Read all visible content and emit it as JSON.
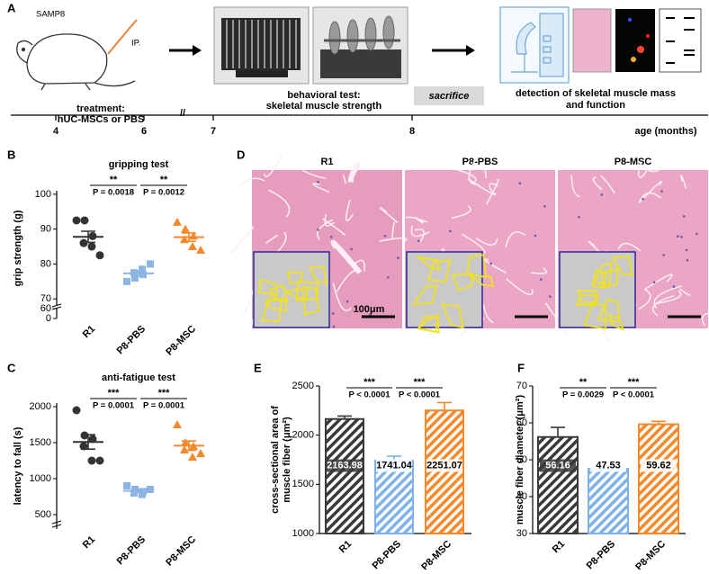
{
  "schematic": {
    "panel": "A",
    "mouse_label": "SAMP8",
    "injection": "IP.",
    "treatment": [
      "treatment:",
      "hUC-MSCs  or PBS"
    ],
    "behavior": [
      "behavioral test:",
      "skeletal muscle strength"
    ],
    "sacrifice": "sacrifice",
    "detection": [
      "detection of skeletal muscle mass",
      "and function"
    ],
    "timeline_ticks": [
      4,
      6,
      7,
      8
    ],
    "timeline_label": "age (months)"
  },
  "histology": {
    "panel": "D",
    "titles": [
      "R1",
      "P8-PBS",
      "P8-MSC"
    ],
    "scale_bar": "100μm"
  },
  "chart_data": [
    {
      "type": "dot",
      "panel": "B",
      "title": "gripping test",
      "ylabel": "grip strength (g)",
      "categories": [
        "R1",
        "P8-PBS",
        "P8-MSC"
      ],
      "groups": [
        {
          "color": "#333333",
          "marker": "circle",
          "values": [
            92.5,
            92.5,
            88,
            86,
            85,
            82.5
          ],
          "mean": 87.8,
          "sem": 1.6
        },
        {
          "color": "#8db4e2",
          "marker": "square",
          "values": [
            75,
            76,
            77,
            77.5,
            78.5,
            80
          ],
          "mean": 77.3,
          "sem": 0.7
        },
        {
          "color": "#f7892b",
          "marker": "triangle",
          "values": [
            92,
            90,
            88,
            87,
            85,
            84
          ],
          "mean": 87.7,
          "sem": 1.2
        }
      ],
      "ylim": [
        68,
        101
      ],
      "yticks": [
        70,
        80,
        90,
        100
      ],
      "ylim_lower": [
        0,
        60
      ],
      "yticks_lower": [
        0,
        60
      ],
      "comparisons": [
        {
          "stars": "**",
          "label": "P = 0.0018"
        },
        {
          "stars": "**",
          "label": "P = 0.0012"
        }
      ]
    },
    {
      "type": "dot",
      "panel": "C",
      "title": "anti-fatigue test",
      "ylabel": "latency to fall (s)",
      "categories": [
        "R1",
        "P8-PBS",
        "P8-MSC"
      ],
      "groups": [
        {
          "color": "#333333",
          "marker": "circle",
          "values": [
            1950,
            1600,
            1550,
            1450,
            1250,
            1250
          ],
          "mean": 1510,
          "sem": 100
        },
        {
          "color": "#8db4e2",
          "marker": "square",
          "values": [
            900,
            850,
            820,
            800,
            780,
            850
          ],
          "mean": 830,
          "sem": 25
        },
        {
          "color": "#f7892b",
          "marker": "triangle",
          "values": [
            1750,
            1500,
            1450,
            1400,
            1300,
            1350
          ],
          "mean": 1458,
          "sem": 65
        }
      ],
      "ylim": [
        300,
        2050
      ],
      "yticks": [
        500,
        1000,
        1500,
        2000
      ],
      "comparisons": [
        {
          "stars": "***",
          "label": "P = 0.0001"
        },
        {
          "stars": "***",
          "label": "P = 0.0001"
        }
      ]
    },
    {
      "type": "bar",
      "panel": "E",
      "ylabel": [
        "cross-sectional area of",
        "muscle fiber (μm²)"
      ],
      "categories": [
        "R1",
        "P8-PBS",
        "P8-MSC"
      ],
      "values": [
        2163.98,
        1741.04,
        2251.07
      ],
      "errors": [
        30,
        45,
        80
      ],
      "colors": [
        "#3a3a3a",
        "#7fb2ea",
        "#f7892b"
      ],
      "ylim": [
        1000,
        2500
      ],
      "yticks": [
        1000,
        1500,
        2000,
        2500
      ],
      "comparisons": [
        {
          "stars": "***",
          "label": "P < 0.0001"
        },
        {
          "stars": "***",
          "label": "P < 0.0001"
        }
      ]
    },
    {
      "type": "bar",
      "panel": "F",
      "ylabel": [
        "muscle fiber diameter (μm²)"
      ],
      "categories": [
        "R1",
        "P8-PBS",
        "P8-MSC"
      ],
      "values": [
        56.16,
        47.53,
        59.62
      ],
      "errors": [
        2.6,
        0.8,
        0.8
      ],
      "colors": [
        "#3a3a3a",
        "#7fb2ea",
        "#f7892b"
      ],
      "ylim": [
        30,
        70
      ],
      "yticks": [
        30,
        40,
        50,
        60,
        70
      ],
      "comparisons": [
        {
          "stars": "**",
          "label": "P = 0.0029"
        },
        {
          "stars": "***",
          "label": "P < 0.0001"
        }
      ]
    }
  ]
}
